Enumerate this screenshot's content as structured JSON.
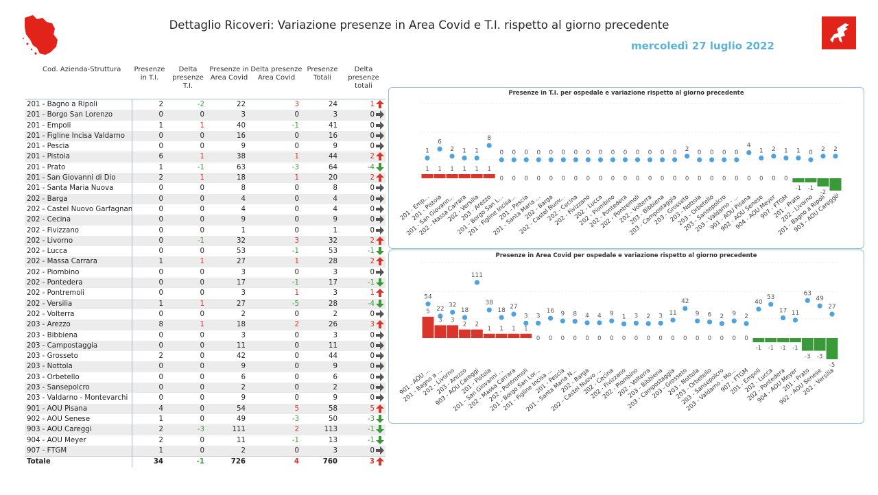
{
  "header": {
    "title": "Dettaglio Ricoveri: Variazione presenze in Area Covid e T.I. rispetto al giorno precedente",
    "date": "mercoledì 27 luglio 2022"
  },
  "colors": {
    "accent": "#5bb3d8",
    "positive": "#d9352b",
    "negative": "#3a9a3a",
    "dot": "#4ea3dd"
  },
  "icons": {
    "logo_left": "tuscany-map-icon",
    "logo_right": "pegasus-logo-icon",
    "up": "arrow-up-icon",
    "down": "arrow-down-icon",
    "flat": "arrow-right-icon"
  },
  "table": {
    "columns": [
      "Cod. Azienda-Struttura",
      "Presenze in T.I.",
      "Delta presenze T.I.",
      "Presenze in Area Covid",
      "Delta presenze Area Covid",
      "Presenze Totali",
      "Delta presenze totali"
    ],
    "rows": [
      [
        "201 - Bagno a Ripoli",
        2,
        -2,
        22,
        3,
        24,
        1
      ],
      [
        "201 - Borgo San Lorenzo",
        0,
        0,
        3,
        0,
        3,
        0
      ],
      [
        "201 - Empoli",
        1,
        1,
        40,
        -1,
        41,
        0
      ],
      [
        "201 - Figline Incisa Valdarno",
        0,
        0,
        16,
        0,
        16,
        0
      ],
      [
        "201 - Pescia",
        0,
        0,
        9,
        0,
        9,
        0
      ],
      [
        "201 - Pistoia",
        6,
        1,
        38,
        1,
        44,
        2
      ],
      [
        "201 - Prato",
        1,
        -1,
        63,
        -3,
        64,
        -4
      ],
      [
        "201 - San Giovanni di Dio",
        2,
        1,
        18,
        1,
        20,
        2
      ],
      [
        "201 - Santa Maria Nuova",
        0,
        0,
        8,
        0,
        8,
        0
      ],
      [
        "202 - Barga",
        0,
        0,
        4,
        0,
        4,
        0
      ],
      [
        "202 - Castel Nuovo Garfagnana",
        0,
        0,
        4,
        0,
        4,
        0
      ],
      [
        "202 - Cecina",
        0,
        0,
        9,
        0,
        9,
        0
      ],
      [
        "202 - Fivizzano",
        0,
        0,
        1,
        0,
        1,
        0
      ],
      [
        "202 - Livorno",
        0,
        -1,
        32,
        3,
        32,
        2
      ],
      [
        "202 - Lucca",
        0,
        0,
        53,
        -1,
        53,
        -1
      ],
      [
        "202 - Massa Carrara",
        1,
        1,
        27,
        1,
        28,
        2
      ],
      [
        "202 - Piombino",
        0,
        0,
        3,
        0,
        3,
        0
      ],
      [
        "202 - Pontedera",
        0,
        0,
        17,
        -1,
        17,
        -1
      ],
      [
        "202 - Pontremoli",
        0,
        0,
        3,
        1,
        3,
        1
      ],
      [
        "202 - Versilia",
        1,
        1,
        27,
        -5,
        28,
        -4
      ],
      [
        "202 - Volterra",
        0,
        0,
        2,
        0,
        2,
        0
      ],
      [
        "203 - Arezzo",
        8,
        1,
        18,
        2,
        26,
        3
      ],
      [
        "203 - Bibbiena",
        0,
        0,
        3,
        0,
        3,
        0
      ],
      [
        "203 - Campostaggia",
        0,
        0,
        11,
        0,
        11,
        0
      ],
      [
        "203 - Grosseto",
        2,
        0,
        42,
        0,
        44,
        0
      ],
      [
        "203 - Nottola",
        0,
        0,
        9,
        0,
        9,
        0
      ],
      [
        "203 - Orbetello",
        0,
        0,
        6,
        0,
        6,
        0
      ],
      [
        "203 - Sansepolcro",
        0,
        0,
        2,
        0,
        2,
        0
      ],
      [
        "203 - Valdarno - Montevarchi",
        0,
        0,
        9,
        0,
        9,
        0
      ],
      [
        "901 - AOU Pisana",
        4,
        0,
        54,
        5,
        58,
        5
      ],
      [
        "902 - AOU Senese",
        1,
        0,
        49,
        -3,
        50,
        -3
      ],
      [
        "903 - AOU Careggi",
        2,
        -3,
        111,
        2,
        113,
        -1
      ],
      [
        "904 - AOU Meyer",
        2,
        0,
        11,
        -1,
        13,
        -1
      ],
      [
        "907 - FTGM",
        1,
        0,
        2,
        0,
        3,
        0
      ]
    ],
    "total": [
      "Totale",
      34,
      -1,
      726,
      4,
      760,
      3
    ]
  },
  "chart_data": [
    {
      "type": "scatter",
      "title": "Presenze in T.I. per ospedale e variazione rispetto al giorno precedente",
      "categories": [
        "201 - Emp...",
        "201 - Pistoia",
        "201 - San Giovann...",
        "202 - Massa Carrara",
        "202 - Versilia",
        "203 - Arezzo",
        "201 - Borgo San L...",
        "201 - Figline Incisa...",
        "201 - Pescia",
        "201 - Santa Maria ...",
        "202 - Barga",
        "202 - Castel Nuov...",
        "202 - Cecina",
        "202 - Fivizzano",
        "202 - Lucca",
        "202 - Piombino",
        "202 - Pontedera",
        "202 - Pontremoli",
        "202 - Volterra",
        "203 - Bibbiena",
        "203 - Campostaggia",
        "203 - Grosseto",
        "203 - Nottola",
        "203 - Orbetello",
        "203 - Sansepolcro",
        "203 - Valdarno - ...",
        "901 - AOU Pisana",
        "902 - AOU Senese",
        "904 - AOU Meyer",
        "907 - FTGM",
        "201 - Prato",
        "202 - Livorno",
        "201 - Bagno a Ripoli",
        "903 - AOU Careggi"
      ],
      "series": [
        {
          "name": "Presenze",
          "values": [
            1,
            6,
            2,
            1,
            1,
            8,
            0,
            0,
            0,
            0,
            0,
            0,
            0,
            0,
            0,
            0,
            0,
            0,
            0,
            0,
            0,
            2,
            0,
            0,
            0,
            0,
            4,
            1,
            2,
            1,
            1,
            0,
            2,
            2
          ]
        },
        {
          "name": "Variazione",
          "values": [
            1,
            1,
            1,
            1,
            1,
            1,
            0,
            0,
            0,
            0,
            0,
            0,
            0,
            0,
            0,
            0,
            0,
            0,
            0,
            0,
            0,
            0,
            0,
            0,
            0,
            0,
            0,
            0,
            0,
            0,
            -1,
            -1,
            -2,
            -3
          ]
        }
      ]
    },
    {
      "type": "scatter",
      "title": "Presenze in Area Covid per ospedale e variazione rispetto al giorno precedente",
      "categories": [
        "901 - AOU ...",
        "201 - Bagno a ...",
        "202 - Livorno",
        "203 - Arezzo",
        "903 - AOU Careggi",
        "201 - Pistoia",
        "201 - San Giovanni ...",
        "202 - Massa Carrara",
        "202 - Pontremoli",
        "201 - Borgo San Lor...",
        "201 - Figline Incisa ...",
        "201 - Pescia",
        "201 - Santa Maria N...",
        "202 - Barga",
        "202 - Castel Nuovo ...",
        "202 - Cecina",
        "202 - Fivizzano",
        "202 - Piombino",
        "202 - Volterra",
        "203 - Bibbiena",
        "203 - Campostaggia",
        "203 - Grosseto",
        "203 - Nottola",
        "203 - Orbetello",
        "203 - Sansepolcro",
        "203 - Valdarno - Mo...",
        "907 - FTGM",
        "201 - Empoli",
        "202 - Lucca",
        "202 - Pontedera",
        "904 - AOU Meyer",
        "201 - Prato",
        "902 - AOU Senese",
        "202 - Versilia"
      ],
      "series": [
        {
          "name": "Presenze",
          "values": [
            54,
            22,
            32,
            18,
            111,
            38,
            18,
            27,
            3,
            3,
            16,
            9,
            8,
            4,
            4,
            9,
            1,
            3,
            2,
            3,
            11,
            42,
            9,
            6,
            2,
            9,
            2,
            40,
            53,
            17,
            11,
            63,
            49,
            27
          ]
        },
        {
          "name": "Variazione",
          "values": [
            5,
            3,
            3,
            2,
            2,
            1,
            1,
            1,
            1,
            0,
            0,
            0,
            0,
            0,
            0,
            0,
            0,
            0,
            0,
            0,
            0,
            0,
            0,
            0,
            0,
            0,
            0,
            -1,
            -1,
            -1,
            -1,
            -3,
            -3,
            -5
          ]
        }
      ]
    }
  ]
}
